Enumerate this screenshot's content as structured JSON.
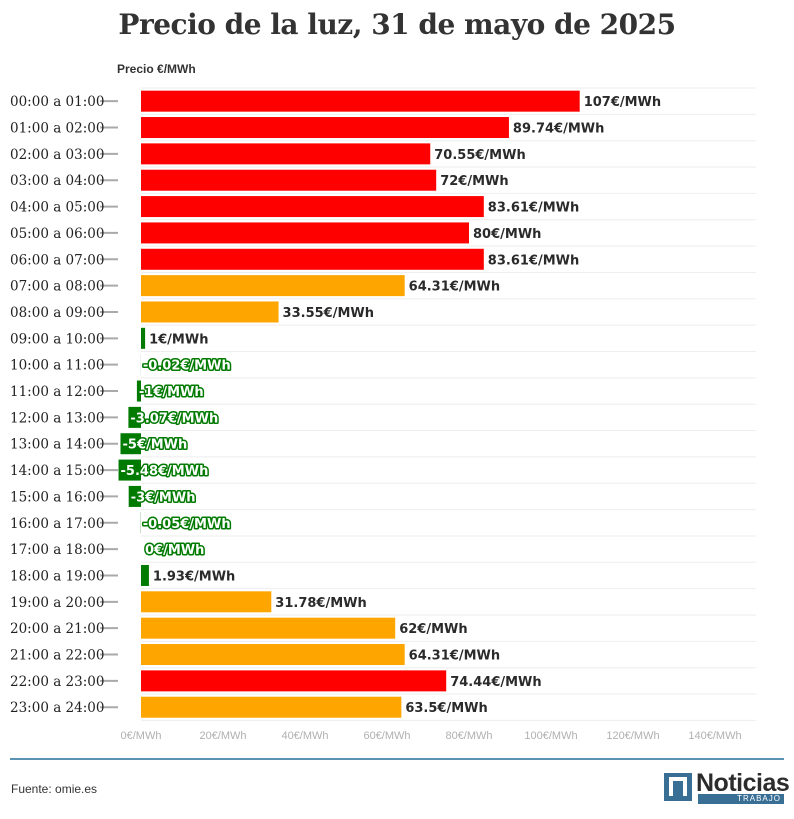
{
  "chart_data": {
    "type": "bar",
    "orientation": "horizontal",
    "title": "Precio de la luz, 31 de mayo de 2025",
    "ylabel": "Precio €/MWh",
    "xlim": [
      0,
      150
    ],
    "xticks": [
      0,
      20,
      40,
      60,
      80,
      100,
      120,
      140
    ],
    "xtick_labels": [
      "0€/MWh",
      "20€/MWh",
      "40€/MWh",
      "60€/MWh",
      "80€/MWh",
      "100€/MWh",
      "120€/MWh",
      "140€/MWh"
    ],
    "grid": true,
    "categories": [
      "00:00 a 01:00",
      "01:00 a 02:00",
      "02:00 a 03:00",
      "03:00 a 04:00",
      "04:00 a 05:00",
      "05:00 a 06:00",
      "06:00 a 07:00",
      "07:00 a 08:00",
      "08:00 a 09:00",
      "09:00 a 10:00",
      "10:00 a 11:00",
      "11:00 a 12:00",
      "12:00 a 13:00",
      "13:00 a 14:00",
      "14:00 a 15:00",
      "15:00 a 16:00",
      "16:00 a 17:00",
      "17:00 a 18:00",
      "18:00 a 19:00",
      "19:00 a 20:00",
      "20:00 a 21:00",
      "21:00 a 22:00",
      "22:00 a 23:00",
      "23:00 a 24:00"
    ],
    "values": [
      107,
      89.74,
      70.55,
      72,
      83.61,
      80,
      83.61,
      64.31,
      33.55,
      1,
      -0.02,
      -1,
      -3.07,
      -5,
      -5.48,
      -3,
      -0.05,
      0,
      1.93,
      31.78,
      62,
      64.31,
      74.44,
      63.5
    ],
    "labels": [
      "107€/MWh",
      "89.74€/MWh",
      "70.55€/MWh",
      "72€/MWh",
      "83.61€/MWh",
      "80€/MWh",
      "83.61€/MWh",
      "64.31€/MWh",
      "33.55€/MWh",
      "1€/MWh",
      "-0.02€/MWh",
      "-1€/MWh",
      "-3.07€/MWh",
      "-5€/MWh",
      "-5.48€/MWh",
      "-3€/MWh",
      "-0.05€/MWh",
      "0€/MWh",
      "1.93€/MWh",
      "31.78€/MWh",
      "62€/MWh",
      "64.31€/MWh",
      "74.44€/MWh",
      "63.5€/MWh"
    ],
    "color_levels": [
      "high",
      "high",
      "high",
      "high",
      "high",
      "high",
      "high",
      "mid",
      "mid",
      "low",
      "low",
      "low",
      "low",
      "low",
      "low",
      "low",
      "low",
      "low",
      "low",
      "mid",
      "mid",
      "mid",
      "high",
      "mid"
    ],
    "colors": {
      "high": "#ff0000",
      "mid": "#ffa500",
      "low": "#007a00"
    }
  },
  "footer": {
    "source": "Fuente: omie.es",
    "brand_name": "Noticias",
    "brand_sub": "TRABAJO",
    "brand_color": "#3a6f95"
  }
}
